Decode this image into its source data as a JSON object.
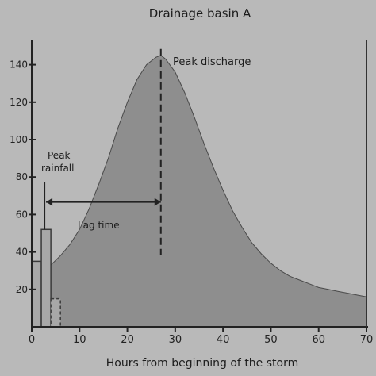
{
  "chart_data": {
    "type": "area",
    "title": "Drainage basin A",
    "xlabel": "Hours from beginning of the storm",
    "ylabel": "",
    "xlim": [
      0,
      70
    ],
    "ylim": [
      0,
      150
    ],
    "x_ticks": [
      0,
      10,
      20,
      30,
      40,
      50,
      60,
      70
    ],
    "y_ticks": [
      20,
      40,
      60,
      80,
      100,
      120,
      140
    ],
    "grid": false,
    "series": [
      {
        "type": "area",
        "x": [
          0,
          2,
          4,
          6,
          8,
          10,
          12,
          14,
          16,
          18,
          20,
          22,
          24,
          26,
          27,
          28,
          30,
          32,
          34,
          36,
          38,
          40,
          42,
          44,
          46,
          48,
          50,
          52,
          54,
          56,
          58,
          60,
          62,
          64,
          66,
          68,
          70
        ],
        "y": [
          28,
          30,
          33,
          38,
          44,
          52,
          63,
          76,
          90,
          106,
          120,
          132,
          140,
          144,
          145,
          143,
          136,
          125,
          112,
          98,
          85,
          73,
          62,
          53,
          45,
          39,
          34,
          30,
          27,
          25,
          23,
          21,
          20,
          19,
          18,
          17,
          16
        ]
      },
      {
        "type": "bar",
        "x": [
          1,
          3,
          5
        ],
        "widths": [
          2,
          2,
          2
        ],
        "y": [
          35,
          52,
          15
        ]
      }
    ],
    "annotations": [
      {
        "text": "Peak discharge",
        "x": 27,
        "y": 145
      },
      {
        "text": "Peak rainfall",
        "x": 3,
        "y": 52
      },
      {
        "text": "Lag time",
        "x_start": 3,
        "x_end": 27,
        "y": 65
      }
    ]
  }
}
